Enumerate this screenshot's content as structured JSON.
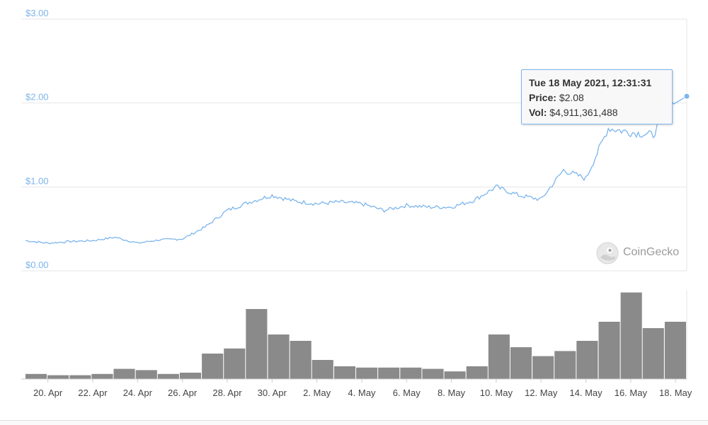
{
  "chart_data": [
    {
      "type": "line",
      "title": "",
      "xlabel": "",
      "ylabel": "",
      "x_tick_labels": [
        "20. Apr",
        "22. Apr",
        "24. Apr",
        "26. Apr",
        "28. Apr",
        "30. Apr",
        "2. May",
        "4. May",
        "6. May",
        "8. May",
        "10. May",
        "12. May",
        "14. May",
        "16. May",
        "18. May"
      ],
      "xlim": [
        "2021-04-19",
        "2021-05-18"
      ],
      "ylim": [
        0,
        3
      ],
      "y_tick_labels": [
        "$0.00",
        "$1.00",
        "$2.00",
        "$3.00"
      ],
      "grid": true,
      "series": [
        {
          "x": [
            "2021-04-19",
            "2021-04-20",
            "2021-04-21",
            "2021-04-22",
            "2021-04-23",
            "2021-04-24",
            "2021-04-25",
            "2021-04-26",
            "2021-04-27",
            "2021-04-28",
            "2021-04-29",
            "2021-04-30",
            "2021-05-01",
            "2021-05-02",
            "2021-05-03",
            "2021-05-04",
            "2021-05-05",
            "2021-05-06",
            "2021-05-07",
            "2021-05-08",
            "2021-05-09",
            "2021-05-10",
            "2021-05-11",
            "2021-05-12",
            "2021-05-13",
            "2021-05-14",
            "2021-05-15",
            "2021-05-16",
            "2021-05-17",
            "2021-05-18"
          ],
          "values": [
            0.36,
            0.33,
            0.35,
            0.36,
            0.4,
            0.33,
            0.37,
            0.38,
            0.52,
            0.72,
            0.82,
            0.9,
            0.83,
            0.8,
            0.82,
            0.8,
            0.72,
            0.78,
            0.76,
            0.76,
            0.84,
            1.0,
            0.9,
            0.85,
            1.2,
            1.1,
            1.7,
            1.65,
            1.62,
            2.08
          ],
          "color": "#7cb5ec"
        }
      ]
    },
    {
      "type": "bar",
      "title": "",
      "xlabel": "",
      "ylabel": "",
      "x": [
        "2021-04-19",
        "2021-04-20",
        "2021-04-21",
        "2021-04-22",
        "2021-04-23",
        "2021-04-24",
        "2021-04-25",
        "2021-04-26",
        "2021-04-27",
        "2021-04-28",
        "2021-04-29",
        "2021-04-30",
        "2021-05-01",
        "2021-05-02",
        "2021-05-03",
        "2021-05-04",
        "2021-05-05",
        "2021-05-06",
        "2021-05-07",
        "2021-05-08",
        "2021-05-09",
        "2021-05-10",
        "2021-05-11",
        "2021-05-12",
        "2021-05-13",
        "2021-05-14",
        "2021-05-15",
        "2021-05-16",
        "2021-05-17",
        "2021-05-18"
      ],
      "values": [
        0.04,
        0.03,
        0.03,
        0.04,
        0.08,
        0.07,
        0.04,
        0.05,
        0.2,
        0.24,
        0.55,
        0.35,
        0.3,
        0.15,
        0.1,
        0.09,
        0.09,
        0.09,
        0.08,
        0.06,
        0.1,
        0.35,
        0.25,
        0.18,
        0.22,
        0.3,
        0.45,
        0.68,
        0.4,
        0.45
      ],
      "color": "#8a8a8a"
    }
  ],
  "tooltip": {
    "title": "Tue 18 May 2021, 12:31:31",
    "price_label": "Price:",
    "price_value": "$2.08",
    "vol_label": "Vol:",
    "vol_value": "$4,911,361,488"
  },
  "watermark": {
    "text": "CoinGecko",
    "icon": "gecko-icon"
  },
  "colors": {
    "price_line": "#7cb5ec",
    "volume_bars": "#8a8a8a",
    "grid": "#e6e6e6",
    "tooltip_border": "#7cb5ec"
  }
}
